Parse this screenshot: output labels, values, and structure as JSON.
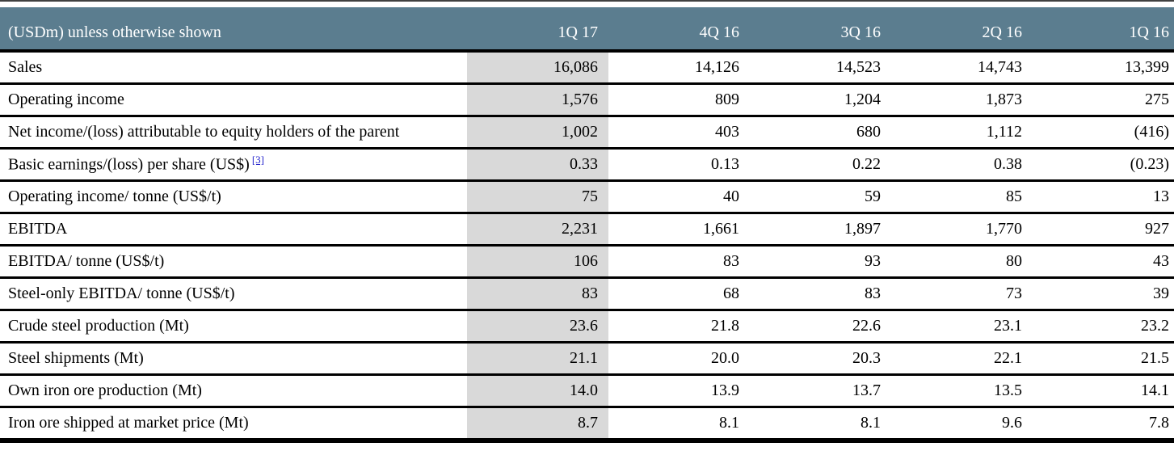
{
  "table": {
    "unit_label": "(USDm) unless otherwise shown",
    "columns": [
      "1Q 17",
      "4Q 16",
      "3Q 16",
      "2Q 16",
      "1Q 16"
    ],
    "highlighted_column": "1Q 17",
    "rows": [
      {
        "label": "Sales",
        "values": [
          "16,086",
          "14,126",
          "14,523",
          "14,743",
          "13,399"
        ]
      },
      {
        "label": "Operating income",
        "values": [
          "1,576",
          "809",
          "1,204",
          "1,873",
          "275"
        ]
      },
      {
        "label": "Net income/(loss) attributable to equity holders of the parent",
        "values": [
          "1,002",
          "403",
          "680",
          "1,112",
          "(416)"
        ]
      },
      {
        "label": "Basic earnings/(loss) per share (US$)",
        "footnote": "[3]",
        "values": [
          "0.33",
          "0.13",
          "0.22",
          "0.38",
          "(0.23)"
        ]
      },
      {
        "label": "Operating income/ tonne (US$/t)",
        "values": [
          "75",
          "40",
          "59",
          "85",
          "13"
        ]
      },
      {
        "label": "EBITDA",
        "values": [
          "2,231",
          "1,661",
          "1,897",
          "1,770",
          "927"
        ]
      },
      {
        "label": "EBITDA/ tonne (US$/t)",
        "values": [
          "106",
          "83",
          "93",
          "80",
          "43"
        ]
      },
      {
        "label": "Steel-only EBITDA/ tonne (US$/t)",
        "values": [
          "83",
          "68",
          "83",
          "73",
          "39"
        ]
      },
      {
        "label": "Crude steel production (Mt)",
        "values": [
          "23.6",
          "21.8",
          "22.6",
          "23.1",
          "23.2"
        ]
      },
      {
        "label": "Steel shipments (Mt)",
        "values": [
          "21.1",
          "20.0",
          "20.3",
          "22.1",
          "21.5"
        ]
      },
      {
        "label": "Own iron ore production (Mt)",
        "values": [
          "14.0",
          "13.9",
          "13.7",
          "13.5",
          "14.1"
        ]
      },
      {
        "label": "Iron ore shipped at market price (Mt)",
        "values": [
          "8.7",
          "8.1",
          "8.1",
          "9.6",
          "7.8"
        ]
      }
    ],
    "colors": {
      "header_bg": "#5b7d8f",
      "header_text": "#ffffff",
      "highlight_col_bg": "#d9d9d9",
      "rule_color": "#000000",
      "footnote_link_color": "#2222cc"
    }
  }
}
